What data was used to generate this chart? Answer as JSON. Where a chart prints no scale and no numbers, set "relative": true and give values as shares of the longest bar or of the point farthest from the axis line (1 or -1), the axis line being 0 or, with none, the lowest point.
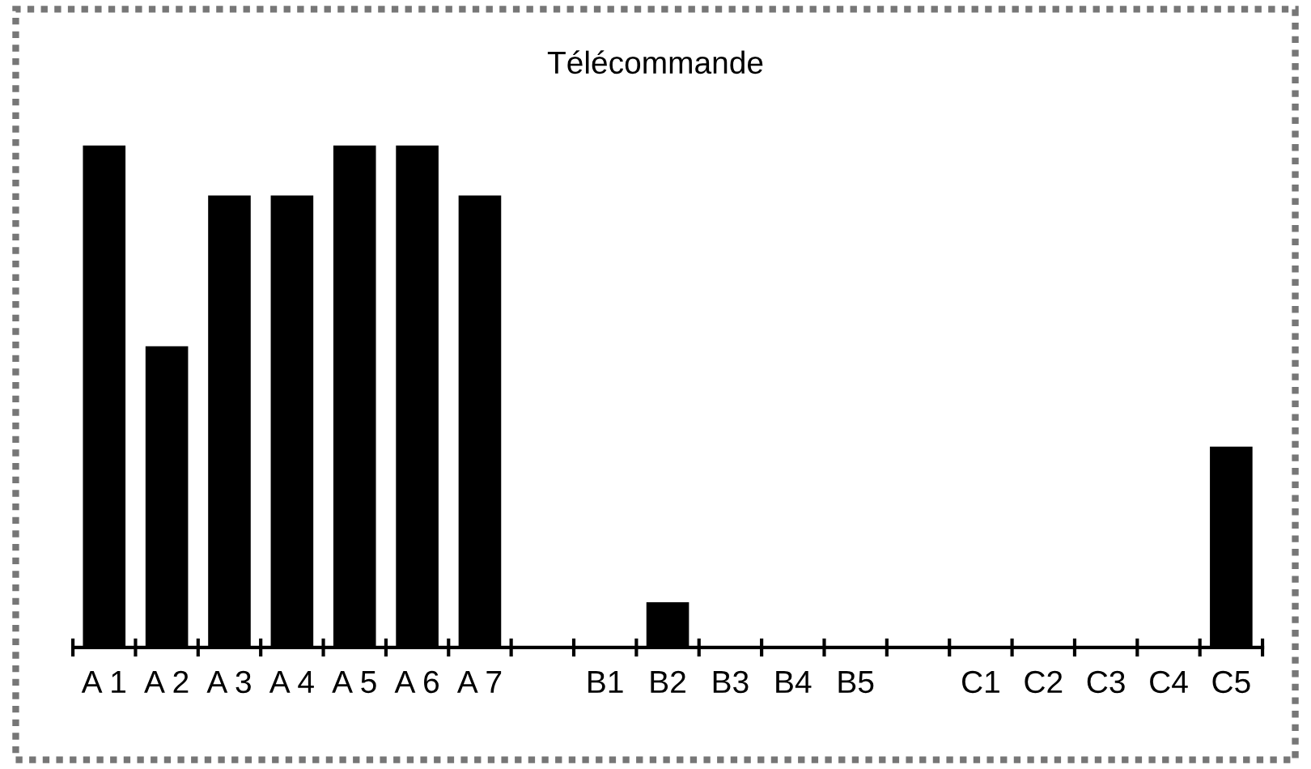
{
  "chart_data": {
    "type": "bar",
    "title": "Télécommande",
    "relative": true,
    "color": "#000000",
    "categories": [
      "A 1",
      "A 2",
      "A 3",
      "A 4",
      "A 5",
      "A 6",
      "A 7",
      null,
      "B1",
      "B2",
      "B3",
      "B4",
      "B5",
      null,
      "C1",
      "C2",
      "C3",
      "C4",
      "C5"
    ],
    "values": [
      1,
      0.6,
      0.9,
      0.9,
      1,
      1,
      0.9,
      0,
      0,
      0.09,
      0,
      0,
      0,
      0,
      0,
      0,
      0,
      0,
      0.4
    ],
    "grid": false,
    "legend": false
  }
}
